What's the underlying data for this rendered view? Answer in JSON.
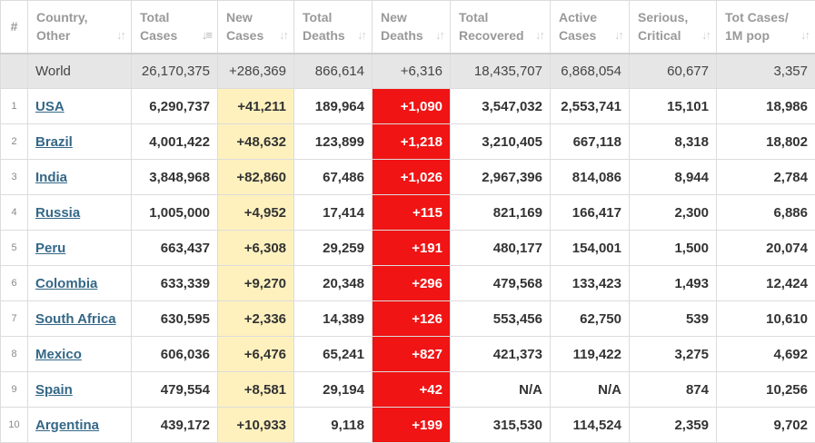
{
  "headers": [
    {
      "l1": "#",
      "l2": ""
    },
    {
      "l1": "Country,",
      "l2": "Other"
    },
    {
      "l1": "Total",
      "l2": "Cases"
    },
    {
      "l1": "New",
      "l2": "Cases"
    },
    {
      "l1": "Total",
      "l2": "Deaths"
    },
    {
      "l1": "New",
      "l2": "Deaths"
    },
    {
      "l1": "Total",
      "l2": "Recovered"
    },
    {
      "l1": "Active",
      "l2": "Cases"
    },
    {
      "l1": "Serious,",
      "l2": "Critical"
    },
    {
      "l1": "Tot Cases/",
      "l2": "1M pop"
    }
  ],
  "world": {
    "country": "World",
    "total_cases": "26,170,375",
    "new_cases": "+286,369",
    "total_deaths": "866,614",
    "new_deaths": "+6,316",
    "total_recovered": "18,435,707",
    "active_cases": "6,868,054",
    "serious": "60,677",
    "per_million": "3,357"
  },
  "rows": [
    {
      "idx": "1",
      "country": "USA",
      "total_cases": "6,290,737",
      "new_cases": "+41,211",
      "total_deaths": "189,964",
      "new_deaths": "+1,090",
      "total_recovered": "3,547,032",
      "active_cases": "2,553,741",
      "serious": "15,101",
      "per_million": "18,986"
    },
    {
      "idx": "2",
      "country": "Brazil",
      "total_cases": "4,001,422",
      "new_cases": "+48,632",
      "total_deaths": "123,899",
      "new_deaths": "+1,218",
      "total_recovered": "3,210,405",
      "active_cases": "667,118",
      "serious": "8,318",
      "per_million": "18,802"
    },
    {
      "idx": "3",
      "country": "India",
      "total_cases": "3,848,968",
      "new_cases": "+82,860",
      "total_deaths": "67,486",
      "new_deaths": "+1,026",
      "total_recovered": "2,967,396",
      "active_cases": "814,086",
      "serious": "8,944",
      "per_million": "2,784"
    },
    {
      "idx": "4",
      "country": "Russia",
      "total_cases": "1,005,000",
      "new_cases": "+4,952",
      "total_deaths": "17,414",
      "new_deaths": "+115",
      "total_recovered": "821,169",
      "active_cases": "166,417",
      "serious": "2,300",
      "per_million": "6,886"
    },
    {
      "idx": "5",
      "country": "Peru",
      "total_cases": "663,437",
      "new_cases": "+6,308",
      "total_deaths": "29,259",
      "new_deaths": "+191",
      "total_recovered": "480,177",
      "active_cases": "154,001",
      "serious": "1,500",
      "per_million": "20,074"
    },
    {
      "idx": "6",
      "country": "Colombia",
      "total_cases": "633,339",
      "new_cases": "+9,270",
      "total_deaths": "20,348",
      "new_deaths": "+296",
      "total_recovered": "479,568",
      "active_cases": "133,423",
      "serious": "1,493",
      "per_million": "12,424"
    },
    {
      "idx": "7",
      "country": "South Africa",
      "total_cases": "630,595",
      "new_cases": "+2,336",
      "total_deaths": "14,389",
      "new_deaths": "+126",
      "total_recovered": "553,456",
      "active_cases": "62,750",
      "serious": "539",
      "per_million": "10,610"
    },
    {
      "idx": "8",
      "country": "Mexico",
      "total_cases": "606,036",
      "new_cases": "+6,476",
      "total_deaths": "65,241",
      "new_deaths": "+827",
      "total_recovered": "421,373",
      "active_cases": "119,422",
      "serious": "3,275",
      "per_million": "4,692"
    },
    {
      "idx": "9",
      "country": "Spain",
      "total_cases": "479,554",
      "new_cases": "+8,581",
      "total_deaths": "29,194",
      "new_deaths": "+42",
      "total_recovered": "N/A",
      "active_cases": "N/A",
      "serious": "874",
      "per_million": "10,256"
    },
    {
      "idx": "10",
      "country": "Argentina",
      "total_cases": "439,172",
      "new_cases": "+10,933",
      "total_deaths": "9,118",
      "new_deaths": "+199",
      "total_recovered": "315,530",
      "active_cases": "114,524",
      "serious": "2,359",
      "per_million": "9,702"
    }
  ]
}
